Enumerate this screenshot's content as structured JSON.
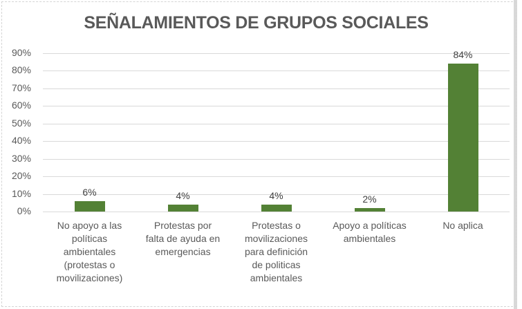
{
  "frame": {
    "background": "#ffffff",
    "border_color": "#d9d9d9"
  },
  "chart_data": {
    "type": "bar",
    "title": "SEÑALAMIENTOS DE GRUPOS SOCIALES",
    "categories": [
      "No apoyo a las políticas ambientales (protestas o movilizaciones)",
      "Protestas por falta de ayuda en emergencias",
      "Protestas o movilizaciones para definición de politicas ambientales",
      "Apoyo a políticas ambientales",
      "No aplica"
    ],
    "category_lines": [
      [
        "No apoyo a las",
        "políticas",
        "ambientales",
        "(protestas o",
        "movilizaciones)"
      ],
      [
        "Protestas por",
        "falta de ayuda en",
        "emergencias"
      ],
      [
        "Protestas o",
        "movilizaciones",
        "para definición",
        "de politicas",
        "ambientales"
      ],
      [
        "Apoyo a políticas",
        "ambientales"
      ],
      [
        "No aplica"
      ]
    ],
    "values": [
      6,
      4,
      4,
      2,
      84
    ],
    "data_labels": [
      "6%",
      "4%",
      "4%",
      "2%",
      "84%"
    ],
    "unit": "%",
    "y_axis": {
      "tick_labels": [
        "0%",
        "10%",
        "20%",
        "30%",
        "40%",
        "50%",
        "60%",
        "70%",
        "80%",
        "90%"
      ],
      "tick_values": [
        0,
        10,
        20,
        30,
        40,
        50,
        60,
        70,
        80,
        90
      ],
      "min": 0,
      "max": 90
    },
    "grid": true,
    "legend_position": "none",
    "colors": {
      "bar": "#538135",
      "title_text": "#595959",
      "axis_text": "#595959",
      "data_label_text": "#404040",
      "gridline": "#d9d9d9"
    }
  }
}
